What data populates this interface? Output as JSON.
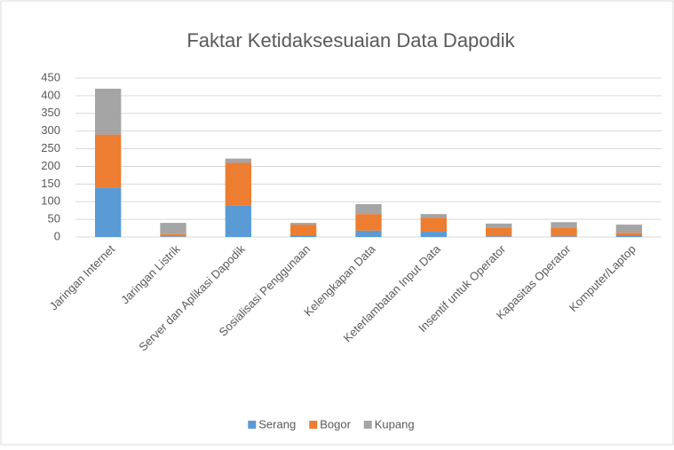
{
  "chart_data": {
    "type": "stacked_bar",
    "title": "Faktar Ketidaksesuaian Data Dapodik",
    "categories": [
      "Jaringan Internet",
      "Jaringan Listrik",
      "Server dan Aplikasi Dapodik",
      "Sosialisasi Penggunaan",
      "Kelengkapan Data",
      "Keterlambatan Input Data",
      "Insentif untuk Operator",
      "Kapasitas Operator",
      "Komputer/Laptop"
    ],
    "series": [
      {
        "name": "Serang",
        "color": "#5b9bd5",
        "values": [
          140,
          2,
          90,
          5,
          18,
          15,
          2,
          2,
          5
        ]
      },
      {
        "name": "Bogor",
        "color": "#ed7d31",
        "values": [
          150,
          6,
          120,
          30,
          47,
          40,
          25,
          25,
          7
        ]
      },
      {
        "name": "Kupang",
        "color": "#a5a5a5",
        "values": [
          130,
          32,
          12,
          5,
          28,
          10,
          11,
          15,
          23
        ]
      }
    ],
    "ylim": [
      0,
      450
    ],
    "yticks": [
      0,
      50,
      100,
      150,
      200,
      250,
      300,
      350,
      400,
      450
    ],
    "grid": true,
    "legend": "bottom"
  }
}
